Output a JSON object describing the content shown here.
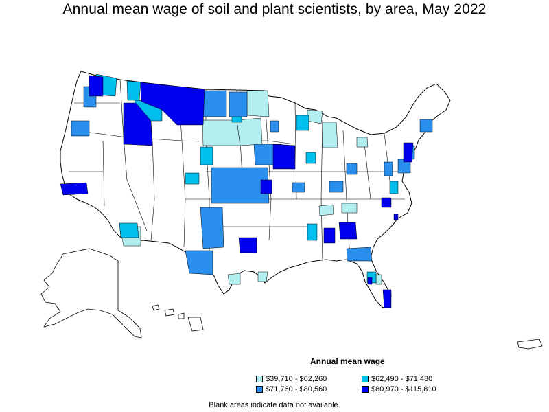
{
  "title": "Annual mean wage of soil and plant scientists, by area, May 2022",
  "legend": {
    "title": "Annual mean wage",
    "items": [
      {
        "label": "$39,710 - $62,260",
        "color": "#b3eef0"
      },
      {
        "label": "$62,490 - $71,480",
        "color": "#00bfee"
      },
      {
        "label": "$71,760 - $80,560",
        "color": "#2b8fee"
      },
      {
        "label": "$80,970 - $115,810",
        "color": "#0000ee"
      }
    ]
  },
  "note": "Blank areas indicate data not available.",
  "colors": {
    "land": "#ffffff",
    "border": "#000000"
  }
}
